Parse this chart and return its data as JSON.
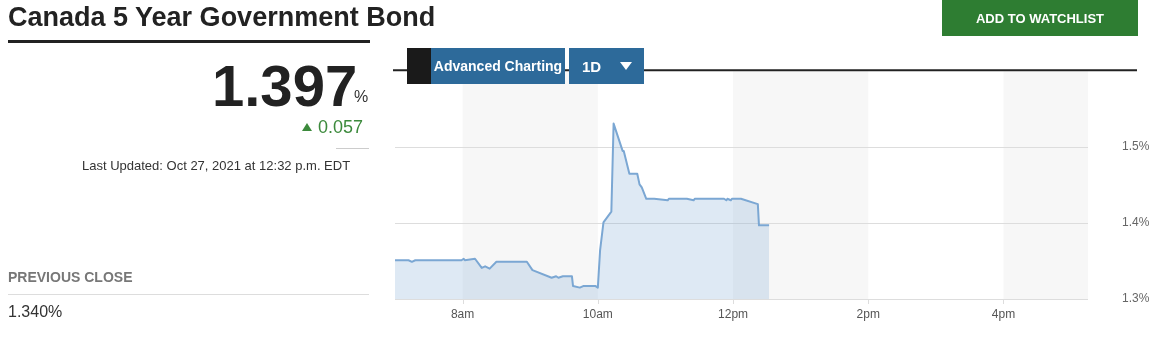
{
  "chart_data": {
    "type": "area",
    "title": "Canada 5 Year Government Bond",
    "annotations": [
      "1.397",
      "%",
      "0.057",
      "Last Updated: Oct 27, 2021 at 12:32 p.m. EDT",
      "PREVIOUS CLOSE",
      "1.340%",
      "ADD TO WATCHLIST",
      "Advanced Charting",
      "1D"
    ],
    "x": [
      "2021-10-27T07:00",
      "2021-10-27T07:12",
      "2021-10-27T07:15",
      "2021-10-27T07:18",
      "2021-10-27T07:59",
      "2021-10-27T08:01",
      "2021-10-27T08:02",
      "2021-10-27T08:11",
      "2021-10-27T08:17",
      "2021-10-27T08:20",
      "2021-10-27T08:24",
      "2021-10-27T08:30",
      "2021-10-27T08:57",
      "2021-10-27T09:02",
      "2021-10-27T09:19",
      "2021-10-27T09:23",
      "2021-10-27T09:25",
      "2021-10-27T09:29",
      "2021-10-27T09:37",
      "2021-10-27T09:38",
      "2021-10-27T09:44",
      "2021-10-27T09:47",
      "2021-10-27T09:58",
      "2021-10-27T10:00",
      "2021-10-27T10:02",
      "2021-10-27T10:05",
      "2021-10-27T10:12",
      "2021-10-27T10:14",
      "2021-10-27T10:22",
      "2021-10-27T10:23",
      "2021-10-27T10:28",
      "2021-10-27T10:35",
      "2021-10-27T10:37",
      "2021-10-27T10:39",
      "2021-10-27T10:43",
      "2021-10-27T10:50",
      "2021-10-27T11:02",
      "2021-10-27T11:03",
      "2021-10-27T11:19",
      "2021-10-27T11:25",
      "2021-10-27T11:26",
      "2021-10-27T11:52",
      "2021-10-27T11:54",
      "2021-10-27T11:55",
      "2021-10-27T11:58",
      "2021-10-27T11:59",
      "2021-10-27T12:07",
      "2021-10-27T12:22",
      "2021-10-27T12:23",
      "2021-10-27T12:32"
    ],
    "series": [
      {
        "color": "#7ba7d3",
        "values": [
          1.351,
          1.351,
          1.349,
          1.351,
          1.351,
          1.353,
          1.351,
          1.353,
          1.341,
          1.343,
          1.34,
          1.349,
          1.349,
          1.338,
          1.328,
          1.33,
          1.328,
          1.33,
          1.33,
          1.317,
          1.315,
          1.317,
          1.317,
          1.315,
          1.364,
          1.401,
          1.415,
          1.531,
          1.495,
          1.495,
          1.465,
          1.465,
          1.451,
          1.447,
          1.432,
          1.432,
          1.43,
          1.432,
          1.432,
          1.43,
          1.432,
          1.432,
          1.43,
          1.432,
          1.43,
          1.432,
          1.432,
          1.425,
          1.397,
          1.397
        ]
      }
    ],
    "xlim": [
      "2021-10-27T07:00",
      "2021-10-27T17:15"
    ],
    "xticks": [
      {
        "value": "2021-10-27T08:00",
        "label": "8am"
      },
      {
        "value": "2021-10-27T10:00",
        "label": "10am"
      },
      {
        "value": "2021-10-27T12:00",
        "label": "12pm"
      },
      {
        "value": "2021-10-27T14:00",
        "label": "2pm"
      },
      {
        "value": "2021-10-27T16:00",
        "label": "4pm"
      }
    ],
    "ylim": [
      1.3,
      1.6
    ],
    "yticks": [
      {
        "value": 1.3,
        "label": "1.3%"
      },
      {
        "value": 1.4,
        "label": "1.4%"
      },
      {
        "value": 1.5,
        "label": "1.5%"
      }
    ],
    "bands": [
      {
        "axis": "x",
        "from": "2021-10-27T08:00",
        "to": "2021-10-27T10:00",
        "color": "#f7f7f7"
      },
      {
        "axis": "x",
        "from": "2021-10-27T12:00",
        "to": "2021-10-27T14:00",
        "color": "#f7f7f7"
      },
      {
        "axis": "x",
        "from": "2021-10-27T16:00",
        "to": "2021-10-27T17:15",
        "color": "#f7f7f7"
      }
    ],
    "grid": "y",
    "legend": false,
    "marker": "none",
    "line_style": "solid"
  }
}
